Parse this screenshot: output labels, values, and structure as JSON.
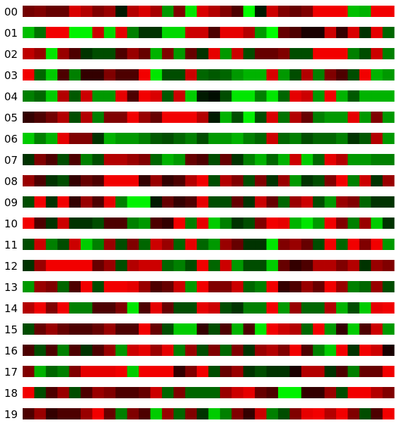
{
  "chart_data": {
    "type": "heatmap",
    "row_labels": [
      "00",
      "01",
      "02",
      "03",
      "04",
      "05",
      "06",
      "07",
      "08",
      "09",
      "10",
      "11",
      "12",
      "13",
      "14",
      "15",
      "16",
      "17",
      "18",
      "19"
    ],
    "color_scale": {
      "low": "#ff0000",
      "mid": "#000000",
      "high": "#00ff00"
    },
    "value_range": [
      -1,
      1
    ],
    "rows": [
      [
        -0.45,
        -0.5,
        -0.4,
        -0.4,
        -0.85,
        -0.7,
        -0.5,
        -0.6,
        0.1,
        -0.7,
        -0.85,
        -0.65,
        0.6,
        -0.5,
        0.9,
        -0.85,
        -0.7,
        -0.5,
        -0.3,
        1,
        0.1,
        -0.8,
        -0.5,
        -0.4,
        -0.5,
        -0.95,
        -0.95,
        -0.95,
        0.75,
        0.7,
        -0.95,
        -0.95
      ],
      [
        0.75,
        0.45,
        -0.95,
        -0.95,
        0.95,
        0.95,
        -0.8,
        0.85,
        -0.9,
        0.5,
        0.2,
        0.2,
        0.85,
        0.85,
        -0.8,
        -0.8,
        -0.3,
        -0.9,
        -0.9,
        -0.7,
        0.6,
        1,
        -0.4,
        -0.3,
        -0.1,
        -0.1,
        -0.8,
        -0.2,
        -0.85,
        0.2,
        -0.9,
        0.4
      ],
      [
        -0.75,
        -0.6,
        0.9,
        -0.6,
        -0.3,
        0.2,
        0.3,
        0.3,
        -0.3,
        -0.6,
        -0.4,
        0.7,
        -0.5,
        0.6,
        -0.4,
        0.2,
        -0.9,
        0.6,
        -0.8,
        0.3,
        -0.4,
        -0.4,
        -0.5,
        0.3,
        0.3,
        -0.95,
        -0.95,
        -0.95,
        0.5,
        0.3,
        -0.8,
        0.5
      ],
      [
        -0.95,
        0.4,
        0.8,
        -0.3,
        0.5,
        -0.2,
        -0.2,
        -0.5,
        -0.3,
        -0.3,
        -0.95,
        0.9,
        0.3,
        0.3,
        -0.8,
        0.4,
        0.35,
        0.4,
        0.6,
        0.7,
        0.7,
        -0.85,
        0.6,
        0.3,
        -0.7,
        0.5,
        -0.5,
        -0.3,
        0.3,
        -0.95,
        0.7,
        0.6
      ],
      [
        0.5,
        0.4,
        0.8,
        -0.7,
        0.35,
        -0.8,
        0.6,
        0.6,
        -0.9,
        -0.3,
        -0.95,
        -0.85,
        0.35,
        -0.8,
        0.8,
        0.1,
        0.05,
        0.3,
        0.9,
        0.9,
        0.5,
        0.9,
        0.4,
        -0.9,
        -0.8,
        0.6,
        -0.95,
        0.7,
        0.35,
        0.7,
        0.7,
        0.7
      ],
      [
        -0.2,
        -0.3,
        -0.45,
        -0.7,
        0.3,
        -0.7,
        0.5,
        -0.5,
        -0.5,
        -0.95,
        -0.6,
        -0.4,
        -0.95,
        -0.95,
        -0.95,
        -0.7,
        0.1,
        0.7,
        0.3,
        0.95,
        0.3,
        -0.85,
        0.45,
        -0.7,
        -0.4,
        0.5,
        0.6,
        0.6,
        -0.9,
        0.6,
        -0.5,
        0.6
      ],
      [
        0.8,
        0.5,
        0.7,
        -0.9,
        -0.5,
        -0.5,
        0.2,
        0.7,
        0.6,
        0.6,
        0.5,
        0.35,
        0.3,
        0.4,
        0.5,
        0.3,
        0.6,
        0.6,
        0.7,
        0.5,
        0.4,
        -0.8,
        0.4,
        0.5,
        0.3,
        0.4,
        0.4,
        0.5,
        0.2,
        0.35,
        -0.7,
        0.6
      ],
      [
        0.2,
        -0.5,
        -0.3,
        0.3,
        -0.3,
        0.5,
        0.3,
        -0.7,
        -0.7,
        -0.6,
        -0.5,
        0.4,
        0.7,
        0.6,
        -0.4,
        -0.3,
        0.3,
        -0.4,
        0.2,
        0.5,
        0.7,
        0.4,
        0.7,
        -0.8,
        0.8,
        0.4,
        -0.9,
        -0.7,
        0.6,
        0.6,
        0.5,
        0.5
      ],
      [
        -0.6,
        -0.3,
        0.2,
        0.3,
        -0.2,
        -0.4,
        -0.3,
        -0.95,
        -0.95,
        -0.95,
        -0.2,
        -0.6,
        -0.2,
        -0.3,
        -0.7,
        -0.95,
        0.3,
        -0.7,
        -0.5,
        0.3,
        -0.5,
        0.2,
        -0.6,
        0.6,
        0.2,
        0.3,
        -0.5,
        -0.95,
        0.5,
        -0.8,
        0.2,
        -0.6
      ],
      [
        0.3,
        -0.95,
        0.2,
        -0.95,
        -0.2,
        -0.6,
        -0.3,
        -0.9,
        0.5,
        0.95,
        0.95,
        0.1,
        -0.4,
        -0.2,
        -0.3,
        -0.9,
        0.3,
        0.3,
        -0.4,
        0.2,
        -0.8,
        -0.4,
        0.4,
        -0.6,
        -0.8,
        0.3,
        0.6,
        -0.6,
        -0.5,
        0.4,
        0.2,
        0.2
      ],
      [
        -0.95,
        -0.3,
        0.2,
        -0.8,
        0.2,
        0.2,
        0.3,
        -0.3,
        -0.3,
        0.5,
        0.6,
        -0.3,
        -0.2,
        -0.95,
        0.5,
        -0.9,
        0.8,
        0.5,
        0.2,
        0.3,
        -0.5,
        -0.95,
        -0.9,
        0.7,
        0.9,
        0.6,
        -0.95,
        -0.5,
        0.5,
        -0.6,
        0.8,
        0.2
      ],
      [
        0.3,
        -0.8,
        0.5,
        0.3,
        -0.8,
        0.8,
        0.5,
        -0.6,
        0.3,
        -0.5,
        0.4,
        -0.8,
        -0.6,
        0.4,
        -0.9,
        0.4,
        0.6,
        -0.6,
        -0.4,
        0.2,
        0.2,
        0.9,
        -0.5,
        -0.6,
        -0.4,
        0.3,
        -0.95,
        0.4,
        -0.95,
        -0.5,
        -0.95,
        0.6
      ],
      [
        0.2,
        -0.6,
        -0.95,
        -0.95,
        -0.95,
        -0.95,
        -0.4,
        -0.6,
        0.3,
        -0.7,
        -0.8,
        -0.8,
        0.4,
        0.5,
        0.3,
        -0.95,
        0.4,
        -0.8,
        0.6,
        0.3,
        0.3,
        0.8,
        -0.4,
        -0.2,
        -0.3,
        -0.7,
        -0.7,
        -0.5,
        -0.7,
        0.2,
        -0.6,
        -0.5
      ],
      [
        0.6,
        -0.6,
        -0.5,
        0.4,
        -0.3,
        -0.95,
        0.3,
        -0.95,
        -0.95,
        -0.9,
        -0.6,
        -0.3,
        -0.4,
        -0.8,
        0.6,
        -0.95,
        -0.5,
        -0.5,
        -0.8,
        0.4,
        0.5,
        -0.95,
        -0.2,
        -0.3,
        -0.6,
        -0.4,
        -0.95,
        -0.6,
        0.5,
        0.4,
        -0.6,
        0.3
      ],
      [
        -0.7,
        -0.95,
        -0.5,
        -0.95,
        0.5,
        0.5,
        -0.3,
        -0.3,
        -0.5,
        0.9,
        -0.3,
        -0.9,
        -0.4,
        0.3,
        0.3,
        -0.9,
        -0.8,
        0.3,
        0.2,
        0.5,
        0.5,
        -0.95,
        0.6,
        -0.6,
        0.4,
        0.4,
        -0.7,
        0.7,
        0.3,
        0.8,
        -0.9,
        -0.95
      ],
      [
        0.3,
        -0.4,
        -0.6,
        -0.4,
        -0.3,
        -0.3,
        -0.4,
        -0.6,
        -0.3,
        -0.3,
        -0.95,
        -0.4,
        0.3,
        0.8,
        0.8,
        -0.2,
        0.3,
        -0.3,
        0.7,
        -0.3,
        0.9,
        -0.95,
        -0.8,
        -0.7,
        0.4,
        -0.95,
        0.6,
        -0.2,
        0.8,
        -0.3,
        -0.8,
        0.6
      ],
      [
        -0.3,
        0.3,
        -0.3,
        0.5,
        -0.3,
        0.2,
        -0.3,
        -0.6,
        0.6,
        -0.8,
        -0.9,
        -0.6,
        -0.9,
        0.5,
        -0.6,
        0.3,
        -0.5,
        0.4,
        -0.5,
        0.2,
        -0.6,
        -0.7,
        -0.5,
        -0.95,
        -0.3,
        0.5,
        0.8,
        -0.95,
        0.2,
        -0.95,
        -0.8,
        -0.1
      ],
      [
        -0.5,
        0.7,
        0.4,
        0.5,
        -0.5,
        -0.9,
        -0.9,
        -0.9,
        -0.95,
        0.8,
        -0.95,
        -0.95,
        -0.95,
        -0.2,
        -0.5,
        -0.95,
        0.3,
        -0.4,
        -0.6,
        0.2,
        0.3,
        0.2,
        0.2,
        -0.1,
        -0.7,
        -0.7,
        0.2,
        -0.3,
        0.5,
        -0.4,
        -0.4,
        -0.95
      ],
      [
        -0.95,
        0.3,
        -0.3,
        -0.6,
        0.3,
        -0.3,
        -0.6,
        -0.5,
        -0.3,
        -0.3,
        -0.4,
        -0.8,
        0.4,
        -0.5,
        0.4,
        0.4,
        0.4,
        -0.6,
        -0.8,
        -0.9,
        -0.4,
        -0.3,
        0.95,
        0.95,
        -0.2,
        -0.2,
        -0.6,
        0.3,
        -0.95,
        -0.95,
        -0.7,
        -0.5
      ],
      [
        -0.3,
        -0.6,
        -0.2,
        -0.3,
        -0.3,
        -0.6,
        -0.95,
        -0.4,
        0.5,
        -0.5,
        -0.3,
        0.8,
        -0.6,
        0.4,
        -0.5,
        0.2,
        0.8,
        0.5,
        -0.5,
        -0.2,
        -0.8,
        0.5,
        0.3,
        -0.5,
        -0.9,
        -0.95,
        -0.7,
        -0.95,
        -0.5,
        0.3,
        -0.3,
        -0.95
      ]
    ]
  }
}
